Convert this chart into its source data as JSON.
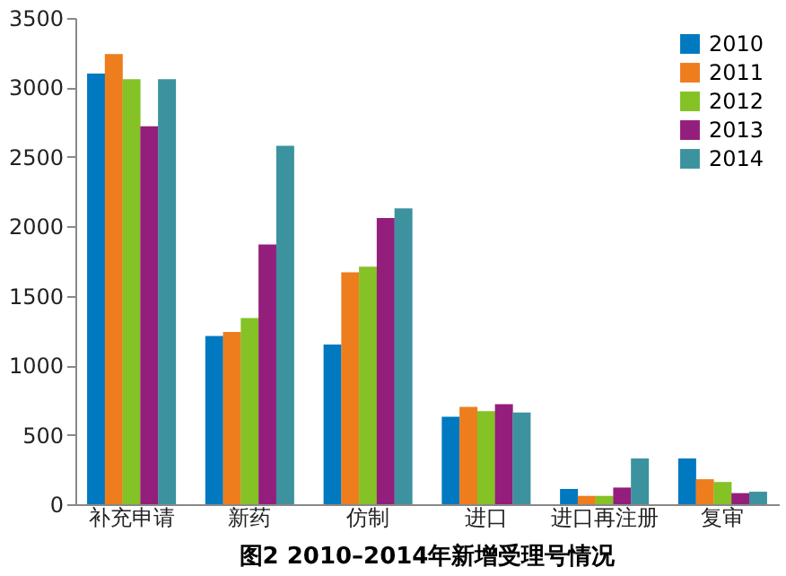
{
  "chart_data": {
    "type": "bar",
    "title": "图2 2010–2014年新增受理号情况",
    "categories": [
      "补充申请",
      "新药",
      "仿制",
      "进口",
      "进口再注册",
      "复审"
    ],
    "series": [
      {
        "name": "2010",
        "color": "#0079c1",
        "values": [
          3100,
          1210,
          1150,
          630,
          110,
          330
        ]
      },
      {
        "name": "2011",
        "color": "#ee7d1e",
        "values": [
          3240,
          1240,
          1670,
          700,
          60,
          180
        ]
      },
      {
        "name": "2012",
        "color": "#84c225",
        "values": [
          3060,
          1340,
          1710,
          670,
          60,
          160
        ]
      },
      {
        "name": "2013",
        "color": "#941e7b",
        "values": [
          2720,
          1870,
          2060,
          720,
          120,
          80
        ]
      },
      {
        "name": "2014",
        "color": "#3d929f",
        "values": [
          3060,
          2580,
          2130,
          660,
          330,
          90
        ]
      }
    ],
    "ylim": [
      0,
      3500
    ],
    "yticks": [
      0,
      500,
      1000,
      1500,
      2000,
      2500,
      3000,
      3500
    ],
    "grid": false,
    "legend": "top right"
  }
}
